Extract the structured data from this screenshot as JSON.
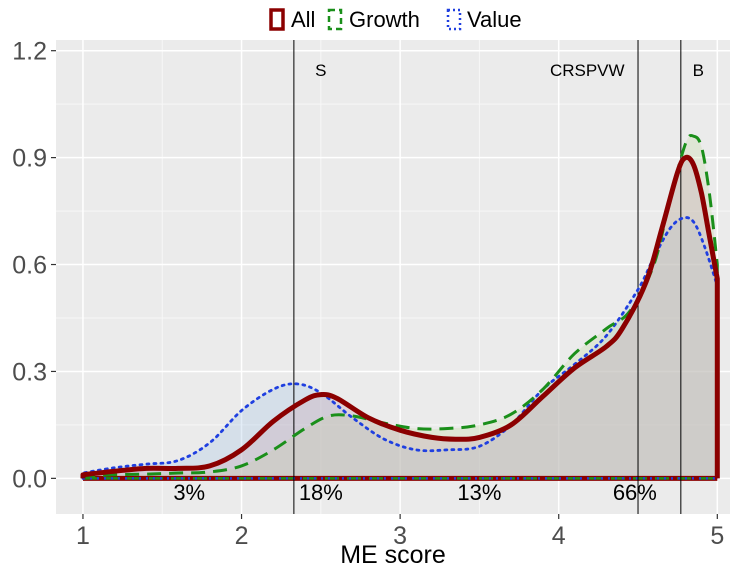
{
  "chart_data": {
    "type": "area",
    "xlabel": "ME score",
    "ylabel": "",
    "xlim": [
      0.83,
      5.08
    ],
    "ylim": [
      -0.1,
      1.23
    ],
    "x_ticks": [
      1,
      2,
      3,
      4,
      5
    ],
    "x_tick_labels": [
      "1",
      "2",
      "3",
      "4",
      "5"
    ],
    "y_ticks": [
      0.0,
      0.3,
      0.6,
      0.9,
      1.2
    ],
    "y_tick_labels": [
      "0.0",
      "0.3",
      "0.6",
      "0.9",
      "1.2"
    ],
    "grid": true,
    "legend": {
      "position": "top",
      "entries": [
        "All",
        "Growth",
        "Value"
      ]
    },
    "series": [
      {
        "name": "All",
        "color": "#8B0000",
        "dash": "solid",
        "fill": "#C9A7B3",
        "points": [
          [
            1.0,
            0.01
          ],
          [
            1.2,
            0.02
          ],
          [
            1.4,
            0.028
          ],
          [
            1.6,
            0.028
          ],
          [
            1.8,
            0.035
          ],
          [
            2.0,
            0.08
          ],
          [
            2.2,
            0.16
          ],
          [
            2.4,
            0.22
          ],
          [
            2.5,
            0.235
          ],
          [
            2.6,
            0.225
          ],
          [
            2.8,
            0.17
          ],
          [
            3.0,
            0.135
          ],
          [
            3.2,
            0.115
          ],
          [
            3.35,
            0.11
          ],
          [
            3.5,
            0.115
          ],
          [
            3.7,
            0.15
          ],
          [
            3.9,
            0.23
          ],
          [
            4.1,
            0.31
          ],
          [
            4.3,
            0.37
          ],
          [
            4.4,
            0.42
          ],
          [
            4.55,
            0.55
          ],
          [
            4.65,
            0.7
          ],
          [
            4.75,
            0.86
          ],
          [
            4.8,
            0.9
          ],
          [
            4.85,
            0.88
          ],
          [
            4.9,
            0.8
          ],
          [
            4.95,
            0.68
          ],
          [
            5.0,
            0.56
          ]
        ]
      },
      {
        "name": "Growth",
        "color": "#1A8F1A",
        "dash": "dashed",
        "fill": "#C8DDAA",
        "points": [
          [
            1.0,
            0.005
          ],
          [
            1.2,
            0.01
          ],
          [
            1.4,
            0.012
          ],
          [
            1.6,
            0.015
          ],
          [
            1.8,
            0.018
          ],
          [
            2.0,
            0.035
          ],
          [
            2.2,
            0.08
          ],
          [
            2.4,
            0.14
          ],
          [
            2.55,
            0.175
          ],
          [
            2.7,
            0.175
          ],
          [
            2.9,
            0.155
          ],
          [
            3.1,
            0.14
          ],
          [
            3.3,
            0.14
          ],
          [
            3.5,
            0.15
          ],
          [
            3.7,
            0.18
          ],
          [
            3.9,
            0.25
          ],
          [
            4.1,
            0.35
          ],
          [
            4.3,
            0.42
          ],
          [
            4.45,
            0.47
          ],
          [
            4.6,
            0.6
          ],
          [
            4.7,
            0.78
          ],
          [
            4.8,
            0.94
          ],
          [
            4.85,
            0.96
          ],
          [
            4.9,
            0.93
          ],
          [
            4.95,
            0.8
          ],
          [
            5.0,
            0.6
          ]
        ]
      },
      {
        "name": "Value",
        "color": "#1F3FE0",
        "dash": "dotted",
        "fill": "#A9C8E6",
        "points": [
          [
            1.0,
            0.015
          ],
          [
            1.2,
            0.03
          ],
          [
            1.4,
            0.04
          ],
          [
            1.6,
            0.05
          ],
          [
            1.8,
            0.1
          ],
          [
            2.0,
            0.19
          ],
          [
            2.2,
            0.25
          ],
          [
            2.35,
            0.265
          ],
          [
            2.5,
            0.24
          ],
          [
            2.7,
            0.17
          ],
          [
            2.9,
            0.11
          ],
          [
            3.1,
            0.08
          ],
          [
            3.3,
            0.08
          ],
          [
            3.5,
            0.09
          ],
          [
            3.7,
            0.15
          ],
          [
            3.9,
            0.25
          ],
          [
            4.1,
            0.32
          ],
          [
            4.3,
            0.4
          ],
          [
            4.5,
            0.53
          ],
          [
            4.6,
            0.62
          ],
          [
            4.7,
            0.7
          ],
          [
            4.78,
            0.73
          ],
          [
            4.85,
            0.72
          ],
          [
            4.92,
            0.65
          ],
          [
            5.0,
            0.54
          ]
        ]
      }
    ],
    "vlines": [
      {
        "x": 2.33,
        "label": "S",
        "label_x": 2.5
      },
      {
        "x": 4.5,
        "label": "CRSPVW",
        "label_x": 4.18
      },
      {
        "x": 4.77,
        "label": "B",
        "label_x": 4.88
      }
    ],
    "region_labels": [
      {
        "x": 1.67,
        "text": "3%"
      },
      {
        "x": 2.5,
        "text": "18%"
      },
      {
        "x": 3.5,
        "text": "13%"
      },
      {
        "x": 4.48,
        "text": "66%"
      }
    ]
  }
}
